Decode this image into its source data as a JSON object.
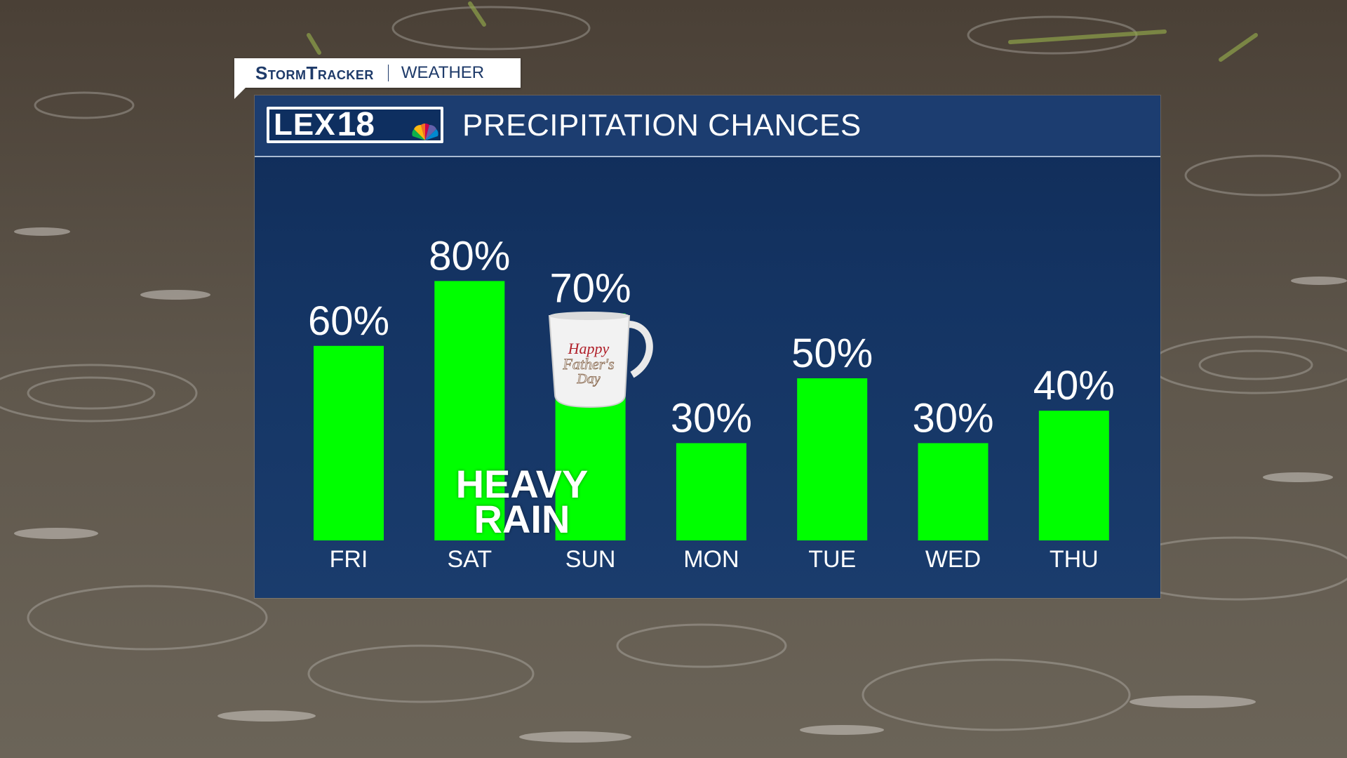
{
  "header_tag": {
    "brand": "StormTracker",
    "section": "WEATHER"
  },
  "station_logo": {
    "call": "LEX",
    "number": "18"
  },
  "panel_title": "PRECIPITATION CHANCES",
  "overlay_label": [
    "HEAVY",
    "RAIN"
  ],
  "mug_text": [
    "Happy",
    "Father's",
    "Day"
  ],
  "colors": {
    "bar": "#00ff00",
    "panel": "#143463",
    "text": "#ffffff",
    "brand": "#1e3a69"
  },
  "chart_data": {
    "type": "bar",
    "title": "PRECIPITATION CHANCES",
    "categories": [
      "FRI",
      "SAT",
      "SUN",
      "MON",
      "TUE",
      "WED",
      "THU"
    ],
    "values": [
      60,
      80,
      70,
      30,
      50,
      30,
      40
    ],
    "value_labels": [
      "60%",
      "80%",
      "70%",
      "30%",
      "50%",
      "30%",
      "40%"
    ],
    "unit": "%",
    "ylim": [
      0,
      100
    ],
    "grid": false,
    "legend": "none"
  }
}
